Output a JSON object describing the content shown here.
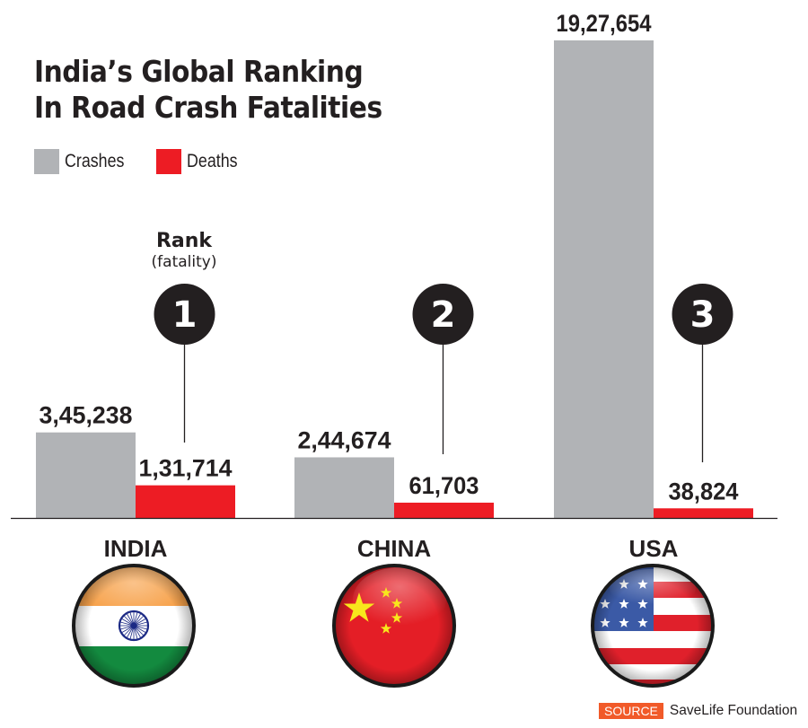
{
  "chart_data": {
    "type": "bar",
    "title": "India’s Global Ranking In Road Crash Fatalities",
    "title_lines": [
      "India’s Global Ranking",
      "In Road Crash Fatalities"
    ],
    "categories": [
      "INDIA",
      "CHINA",
      "USA"
    ],
    "series": [
      {
        "name": "Crashes",
        "color": "#b1b3b6",
        "values": [
          345238,
          244674,
          1927654
        ],
        "labels": [
          "3,45,238",
          "2,44,674",
          "19,27,654"
        ]
      },
      {
        "name": "Deaths",
        "color": "#ed1c24",
        "values": [
          131714,
          61703,
          38824
        ],
        "labels": [
          "1,31,714",
          "61,703",
          "38,824"
        ]
      }
    ],
    "ranks": [
      "1",
      "2",
      "3"
    ],
    "rank_title": "Rank",
    "rank_subtitle": "(fatality)",
    "legend_position": "top-left",
    "grid": false,
    "xlabel": "",
    "ylabel": "",
    "ylim": [
      0,
      1927654
    ]
  },
  "flags": [
    "india-flag",
    "china-flag",
    "usa-flag"
  ],
  "source": {
    "tag": "SOURCE",
    "text": "SaveLife Foundation",
    "tag_color": "#f15a29"
  }
}
